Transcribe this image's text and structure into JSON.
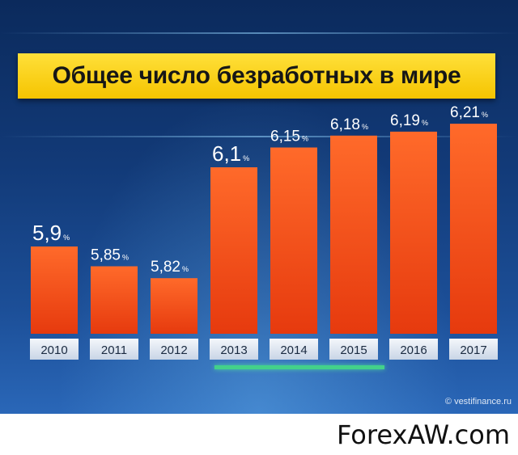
{
  "chart_data": {
    "type": "bar",
    "title": "Общее число безработных в мире",
    "categories": [
      "2010",
      "2011",
      "2012",
      "2013",
      "2014",
      "2015",
      "2016",
      "2017"
    ],
    "values": [
      5.9,
      5.85,
      5.82,
      6.1,
      6.15,
      6.18,
      6.19,
      6.21
    ],
    "value_labels": [
      "5,9",
      "5,85",
      "5,82",
      "6,1",
      "6,15",
      "6,18",
      "6,19",
      "6,21"
    ],
    "unit": "%",
    "xlabel": "",
    "ylabel": "",
    "grid": false,
    "legend": "none",
    "colors": {
      "bar_top": "#ff6a2a",
      "bar_bottom": "#e63a0e",
      "title_background": "#f5c400",
      "background": "#123a78"
    }
  },
  "footer": {
    "copyright": "© vestifinance.ru",
    "watermark": "ForexAW.com"
  }
}
